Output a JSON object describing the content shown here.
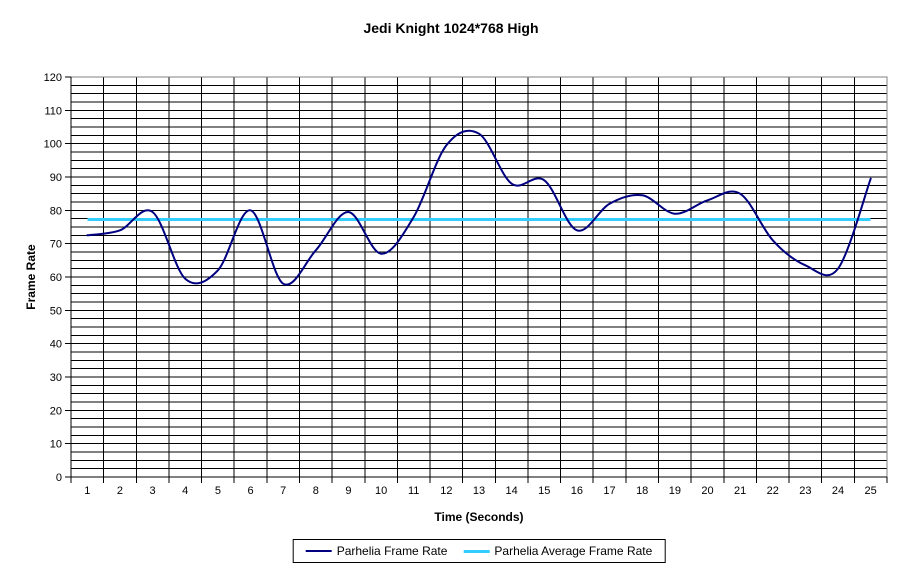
{
  "chart_data": {
    "type": "line",
    "title": "Jedi Knight 1024*768 High",
    "xlabel": "Time (Seconds)",
    "ylabel": "Frame Rate",
    "categories": [
      1,
      2,
      3,
      4,
      5,
      6,
      7,
      8,
      9,
      10,
      11,
      12,
      13,
      14,
      15,
      16,
      17,
      18,
      19,
      20,
      21,
      22,
      23,
      24,
      25
    ],
    "y_ticks": [
      0,
      10,
      20,
      30,
      40,
      50,
      60,
      70,
      80,
      90,
      100,
      110,
      120
    ],
    "ylim": [
      0,
      120
    ],
    "y_minor_step": 2.5,
    "grid": "both",
    "legend_position": "bottom",
    "series": [
      {
        "name": "Parhelia Frame Rate",
        "color": "#000080",
        "style": "smooth",
        "values": [
          72.5,
          74,
          79.5,
          59.5,
          62,
          80,
          58,
          68,
          79.5,
          67,
          78,
          99.5,
          103,
          88,
          89,
          74,
          82,
          84.5,
          79,
          83,
          85,
          71,
          63.5,
          62.5,
          89.5
        ]
      },
      {
        "name": "Parhelia Average Frame Rate",
        "color": "#33CCFF",
        "style": "horizontal-average-line",
        "value": 77.3
      }
    ]
  },
  "colors": {
    "background": "#ffffff",
    "gridline": "#000000",
    "plot_border": "#808080",
    "text": "#000000",
    "series_line": "#000080",
    "average_line": "#33CCFF"
  }
}
